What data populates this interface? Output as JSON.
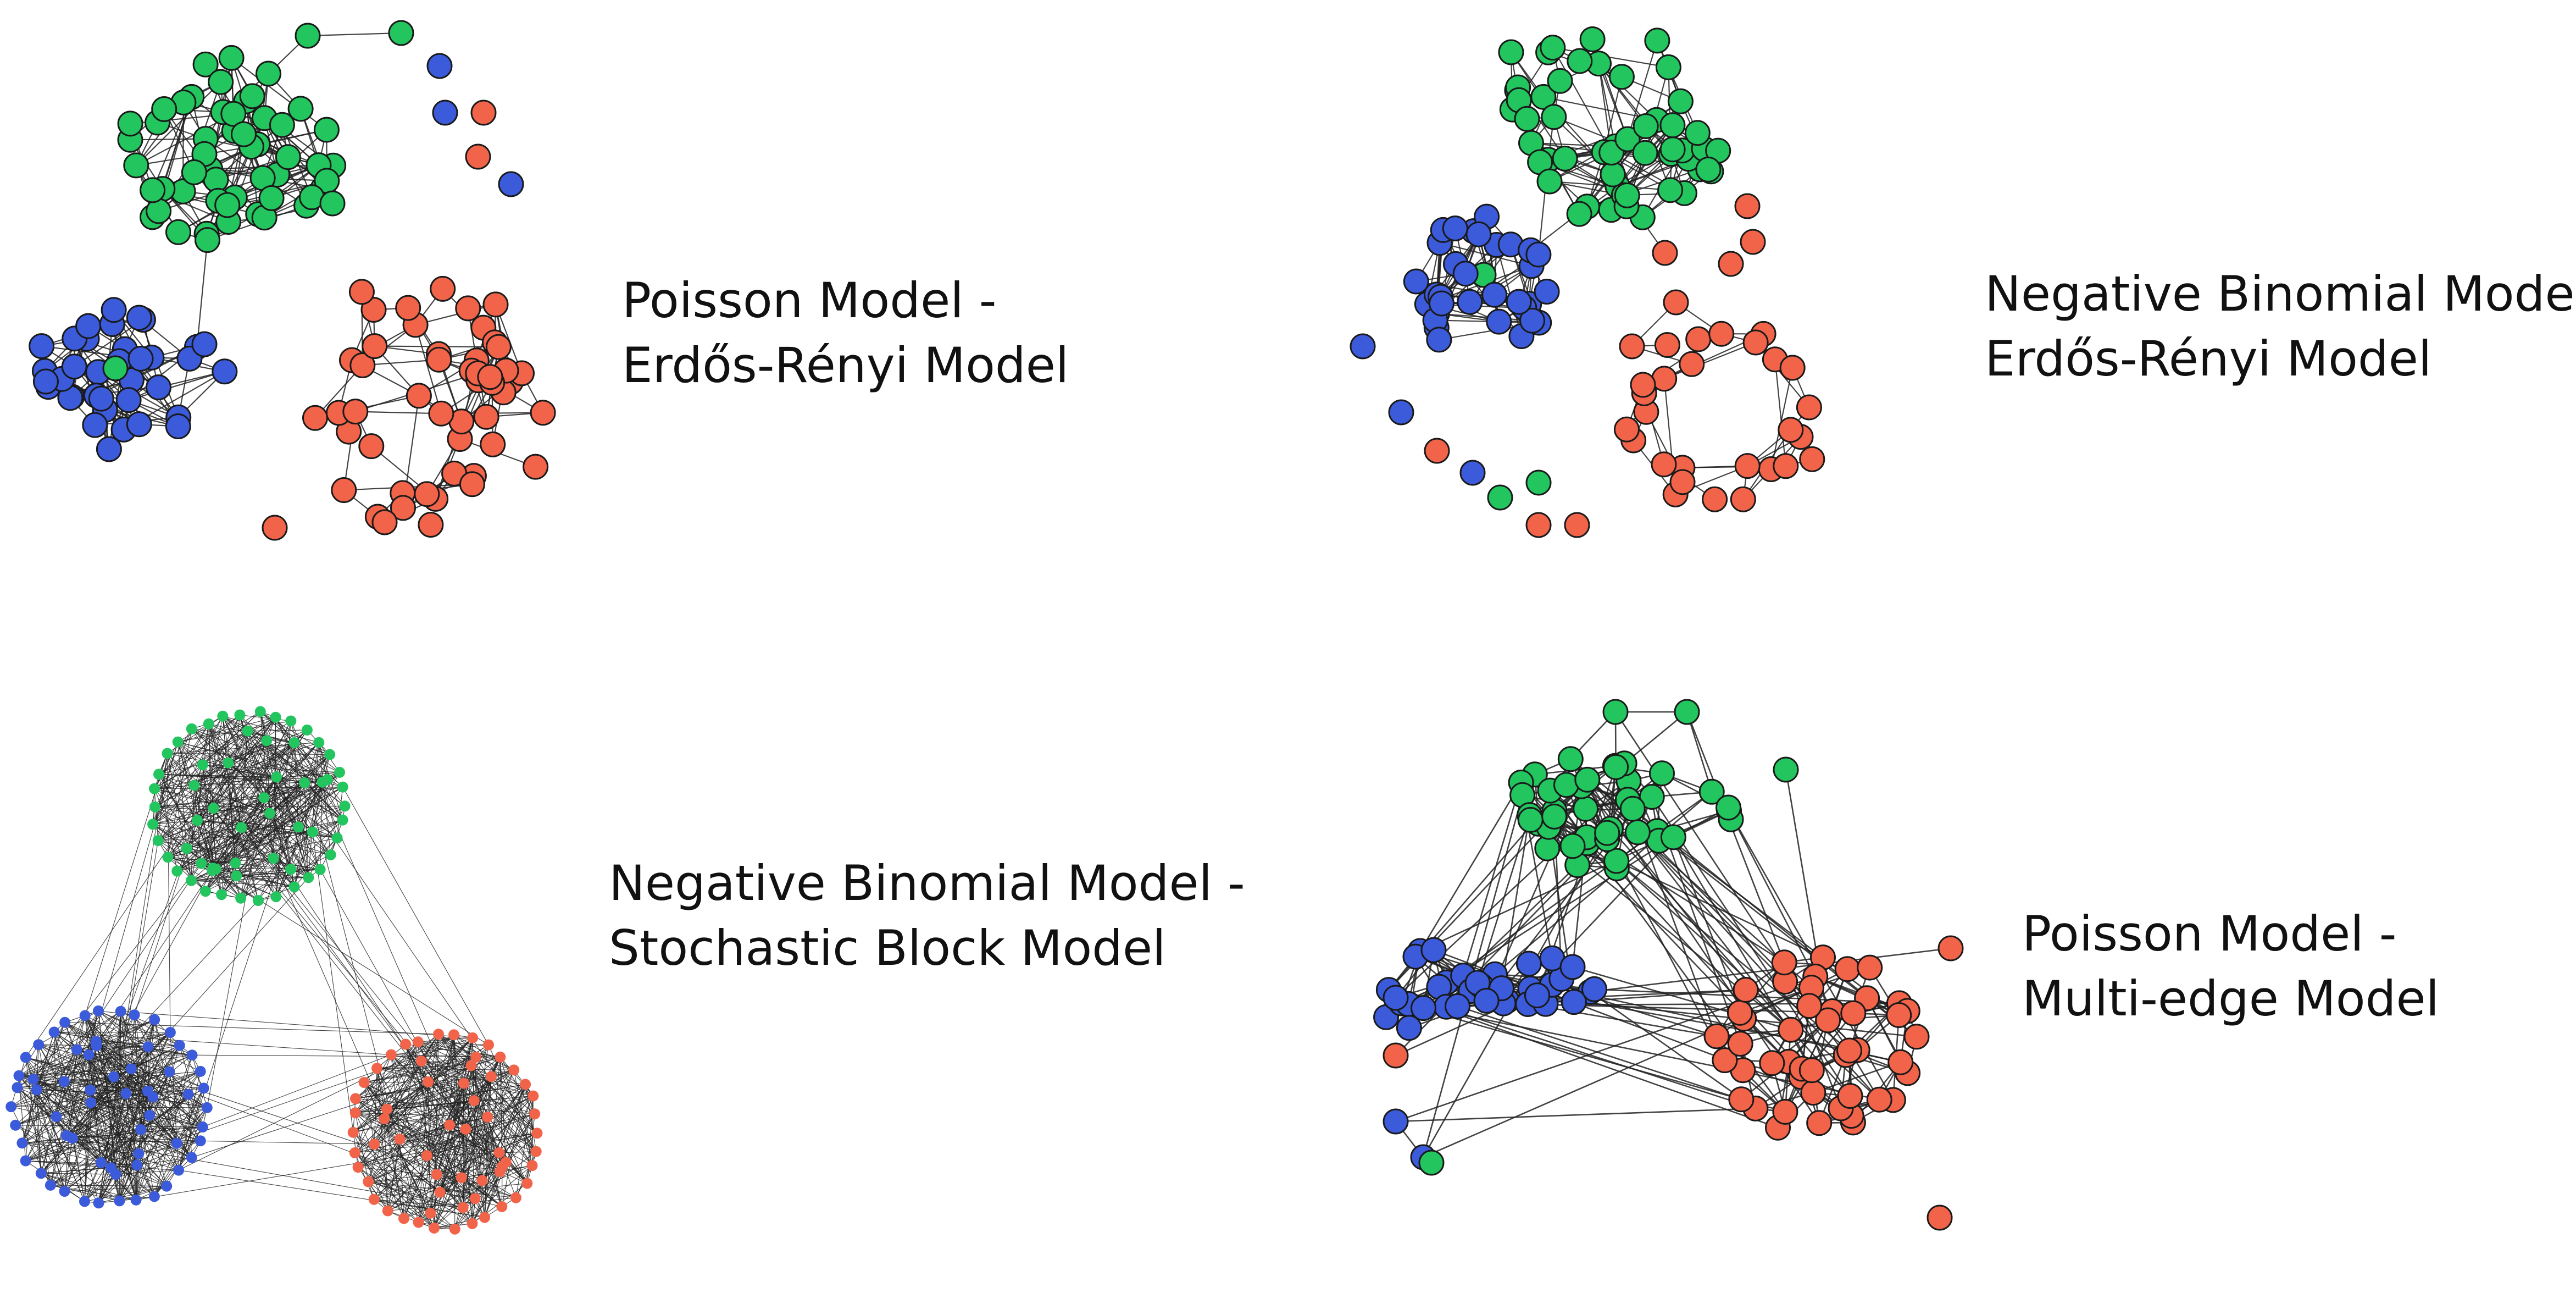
{
  "colors": {
    "background": "#ffffff",
    "green_community": "#22c55e",
    "blue_community": "#3b5bdb",
    "red_community": "#f26449",
    "edge": "#222222",
    "node_outline": "#1a1a1a"
  },
  "panels": [
    {
      "id": "poisson-er",
      "caption_line1": "Poisson Model -",
      "caption_line2": "Erdős-Rényi Model",
      "edge_style": "sparse"
    },
    {
      "id": "negbin-er",
      "caption_line1": "Negative Binomial Model -",
      "caption_line2": "Erdős-Rényi Model",
      "edge_style": "sparse"
    },
    {
      "id": "negbin-sbm",
      "caption_line1": "Negative Binomial Model -",
      "caption_line2": "Stochastic Block Model",
      "edge_style": "dense"
    },
    {
      "id": "poisson-multiedge",
      "caption_line1": "Poisson Model -",
      "caption_line2": "Multi-edge Model",
      "edge_style": "multi"
    }
  ]
}
